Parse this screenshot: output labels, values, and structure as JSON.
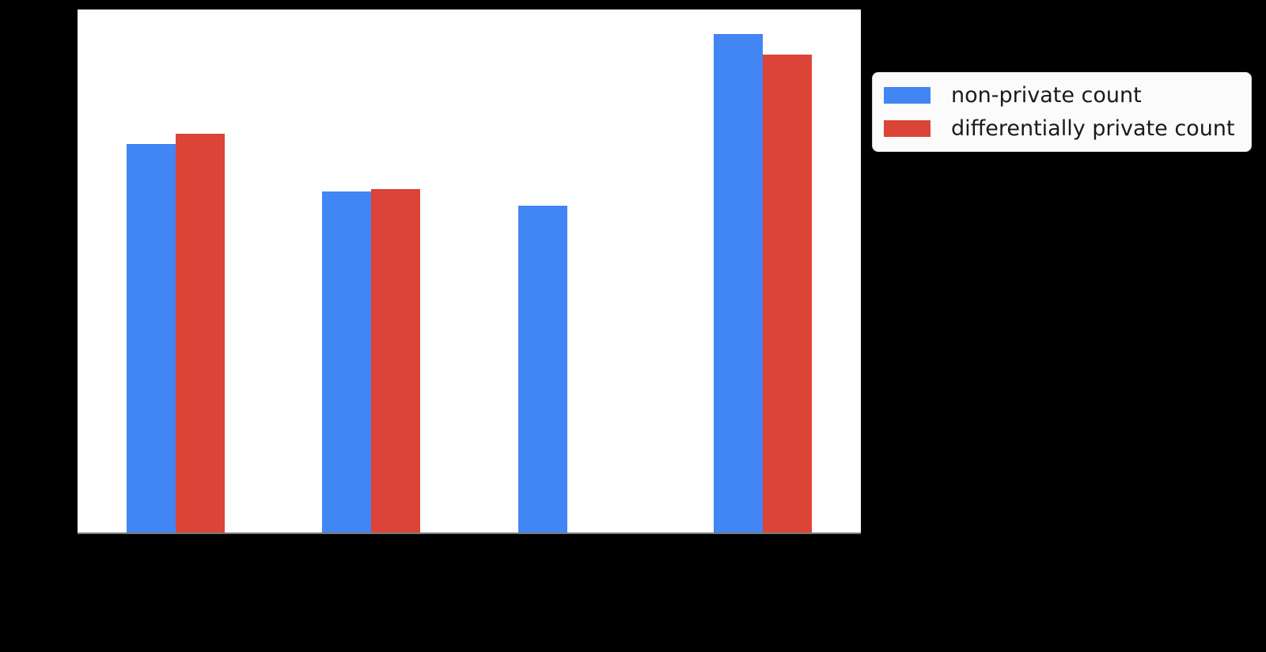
{
  "chart_data": {
    "type": "bar",
    "title": "",
    "xlabel": "",
    "ylabel": "",
    "categories": [
      "",
      "",
      "",
      ""
    ],
    "series": [
      {
        "name": "non-private count",
        "color": "#4285f4",
        "values": [
          74.3,
          65.2,
          62.5,
          95.3
        ]
      },
      {
        "name": "differentially private count",
        "color": "#db4437",
        "values": [
          76.3,
          65.7,
          0,
          91.4
        ]
      }
    ],
    "ylim": [
      0,
      100
    ],
    "grid": false,
    "axis_tick_labels_visible": false,
    "legend_position": "outside-right-top",
    "plot_background": "#ffffff",
    "page_background": "#000000",
    "baseline_color": "#7a7a7a"
  },
  "legend": {
    "items": [
      {
        "label": "non-private count",
        "color": "#4285f4"
      },
      {
        "label": "differentially private count",
        "color": "#db4437"
      }
    ]
  }
}
